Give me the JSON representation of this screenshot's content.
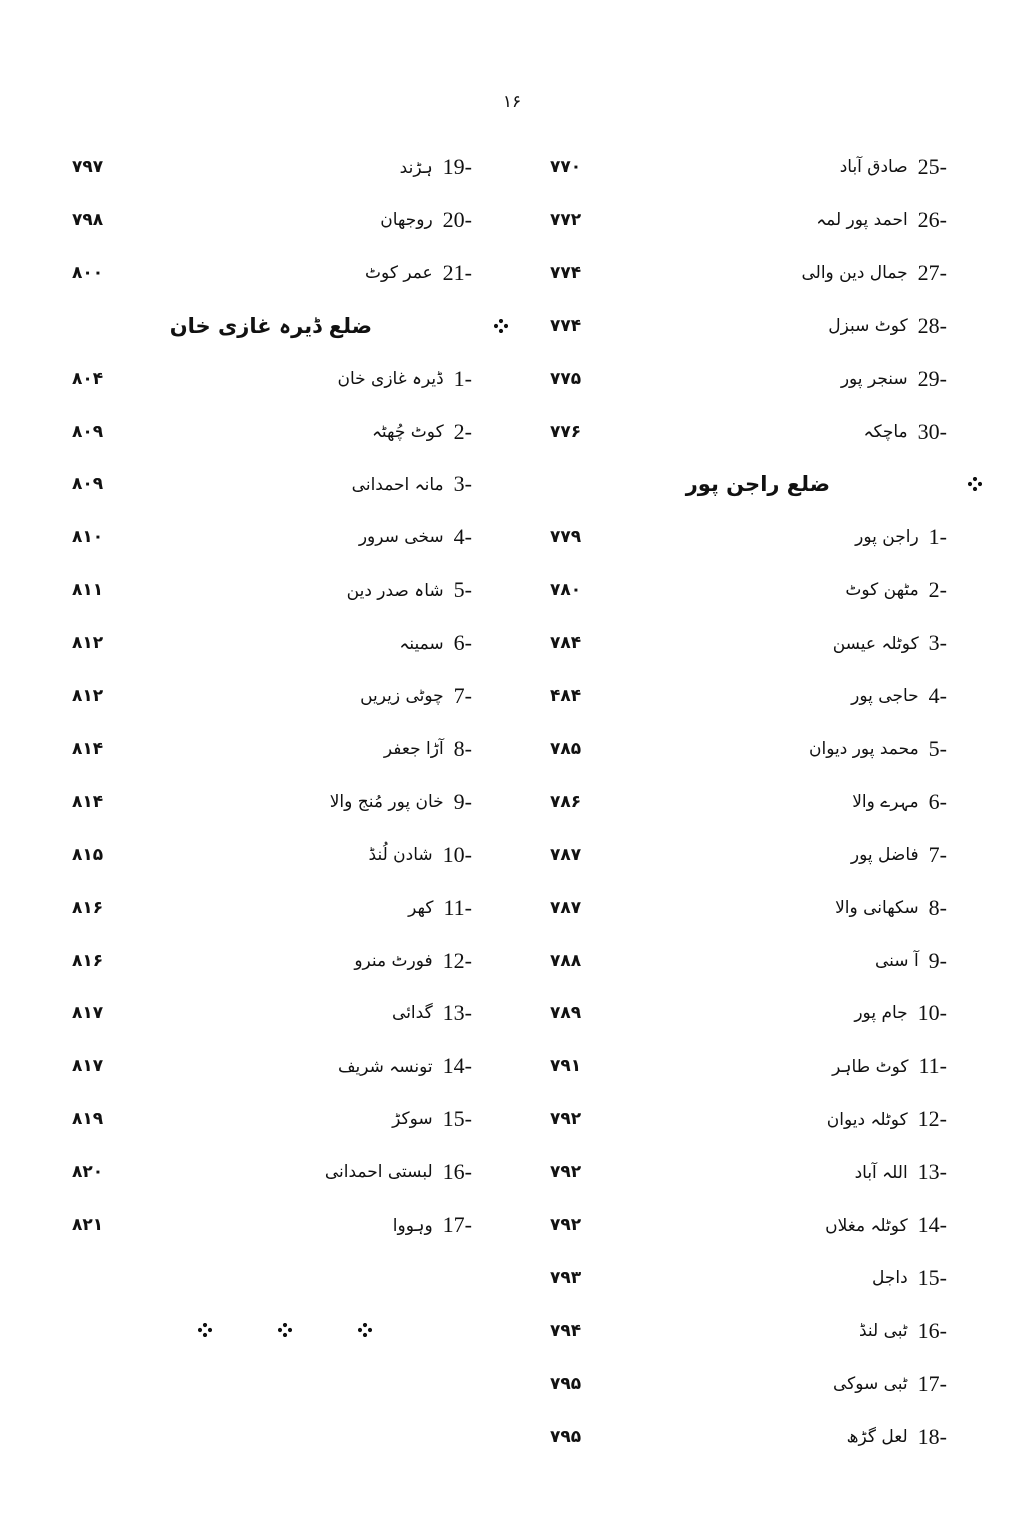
{
  "page_number": "۱۶",
  "right_column": [
    {
      "type": "entry",
      "num": "25-",
      "name": "صادق آباد",
      "page": "۷۷۰"
    },
    {
      "type": "entry",
      "num": "26-",
      "name": "احمد پور لمہ",
      "page": "۷۷۲"
    },
    {
      "type": "entry",
      "num": "27-",
      "name": "جمال دین والی",
      "page": "۷۷۴"
    },
    {
      "type": "entry",
      "num": "28-",
      "name": "کوٹ سبزل",
      "page": "۷۷۴"
    },
    {
      "type": "entry",
      "num": "29-",
      "name": "سنجر پور",
      "page": "۷۷۵"
    },
    {
      "type": "entry",
      "num": "30-",
      "name": "ماچکہ",
      "page": "۷۷۶"
    },
    {
      "type": "heading",
      "name": "ضلع راجن پور"
    },
    {
      "type": "entry",
      "num": "1-",
      "name": "راجن پور",
      "page": "۷۷۹"
    },
    {
      "type": "entry",
      "num": "2-",
      "name": "مٹھن کوٹ",
      "page": "۷۸۰"
    },
    {
      "type": "entry",
      "num": "3-",
      "name": "کوٹلہ عیسن",
      "page": "۷۸۴"
    },
    {
      "type": "entry",
      "num": "4-",
      "name": "حاجی پور",
      "page": "۴۸۴"
    },
    {
      "type": "entry",
      "num": "5-",
      "name": "محمد پور دیوان",
      "page": "۷۸۵"
    },
    {
      "type": "entry",
      "num": "6-",
      "name": "مہرے والا",
      "page": "۷۸۶"
    },
    {
      "type": "entry",
      "num": "7-",
      "name": "فاضل پور",
      "page": "۷۸۷"
    },
    {
      "type": "entry",
      "num": "8-",
      "name": "سکھانی والا",
      "page": "۷۸۷"
    },
    {
      "type": "entry",
      "num": "9-",
      "name": "آ سنی",
      "page": "۷۸۸"
    },
    {
      "type": "entry",
      "num": "10-",
      "name": "جام پور",
      "page": "۷۸۹"
    },
    {
      "type": "entry",
      "num": "11-",
      "name": "کوٹ طاہر",
      "page": "۷۹۱"
    },
    {
      "type": "entry",
      "num": "12-",
      "name": "کوٹلہ دیوان",
      "page": "۷۹۲"
    },
    {
      "type": "entry",
      "num": "13-",
      "name": "اللہ آباد",
      "page": "۷۹۲"
    },
    {
      "type": "entry",
      "num": "14-",
      "name": "کوٹلہ مغلاں",
      "page": "۷۹۲"
    },
    {
      "type": "entry",
      "num": "15-",
      "name": "داجل",
      "page": "۷۹۳"
    },
    {
      "type": "entry",
      "num": "16-",
      "name": "ٹبی لنڈ",
      "page": "۷۹۴"
    },
    {
      "type": "entry",
      "num": "17-",
      "name": "ٹبی سوکی",
      "page": "۷۹۵"
    },
    {
      "type": "entry",
      "num": "18-",
      "name": "لعل گڑھ",
      "page": "۷۹۵"
    }
  ],
  "left_column": [
    {
      "type": "entry",
      "num": "19-",
      "name": "ہڑند",
      "page": "۷۹۷"
    },
    {
      "type": "entry",
      "num": "20-",
      "name": "روجھان",
      "page": "۷۹۸"
    },
    {
      "type": "entry",
      "num": "21-",
      "name": "عمر کوٹ",
      "page": "۸۰۰"
    },
    {
      "type": "heading",
      "name": "ضلع ڈیرہ غازی خان"
    },
    {
      "type": "entry",
      "num": "1-",
      "name": "ڈیرہ غازی خان",
      "page": "۸۰۴"
    },
    {
      "type": "entry",
      "num": "2-",
      "name": "کوٹ چُھٹہ",
      "page": "۸۰۹"
    },
    {
      "type": "entry",
      "num": "3-",
      "name": "مانہ احمدانی",
      "page": "۸۰۹"
    },
    {
      "type": "entry",
      "num": "4-",
      "name": "سخی سرور",
      "page": "۸۱۰"
    },
    {
      "type": "entry",
      "num": "5-",
      "name": "شاہ صدر دین",
      "page": "۸۱۱"
    },
    {
      "type": "entry",
      "num": "6-",
      "name": "سمینہ",
      "page": "۸۱۲"
    },
    {
      "type": "entry",
      "num": "7-",
      "name": "چوٹی زیریں",
      "page": "۸۱۲"
    },
    {
      "type": "entry",
      "num": "8-",
      "name": "آڑا جعفر",
      "page": "۸۱۴"
    },
    {
      "type": "entry",
      "num": "9-",
      "name": "خان پور مُنج والا",
      "page": "۸۱۴"
    },
    {
      "type": "entry",
      "num": "10-",
      "name": "شادن لُنڈ",
      "page": "۸۱۵"
    },
    {
      "type": "entry",
      "num": "11-",
      "name": "کھر",
      "page": "۸۱۶"
    },
    {
      "type": "entry",
      "num": "12-",
      "name": "فورٹ منرو",
      "page": "۸۱۶"
    },
    {
      "type": "entry",
      "num": "13-",
      "name": "گدائی",
      "page": "۸۱۷"
    },
    {
      "type": "entry",
      "num": "14-",
      "name": "تونسہ شریف",
      "page": "۸۱۷"
    },
    {
      "type": "entry",
      "num": "15-",
      "name": "سوکڑ",
      "page": "۸۱۹"
    },
    {
      "type": "entry",
      "num": "16-",
      "name": "لبستی احمدانی",
      "page": "۸۲۰"
    },
    {
      "type": "entry",
      "num": "17-",
      "name": "وہووا",
      "page": "۸۲۱"
    }
  ],
  "ornament_icon": "four-dot-diamond"
}
